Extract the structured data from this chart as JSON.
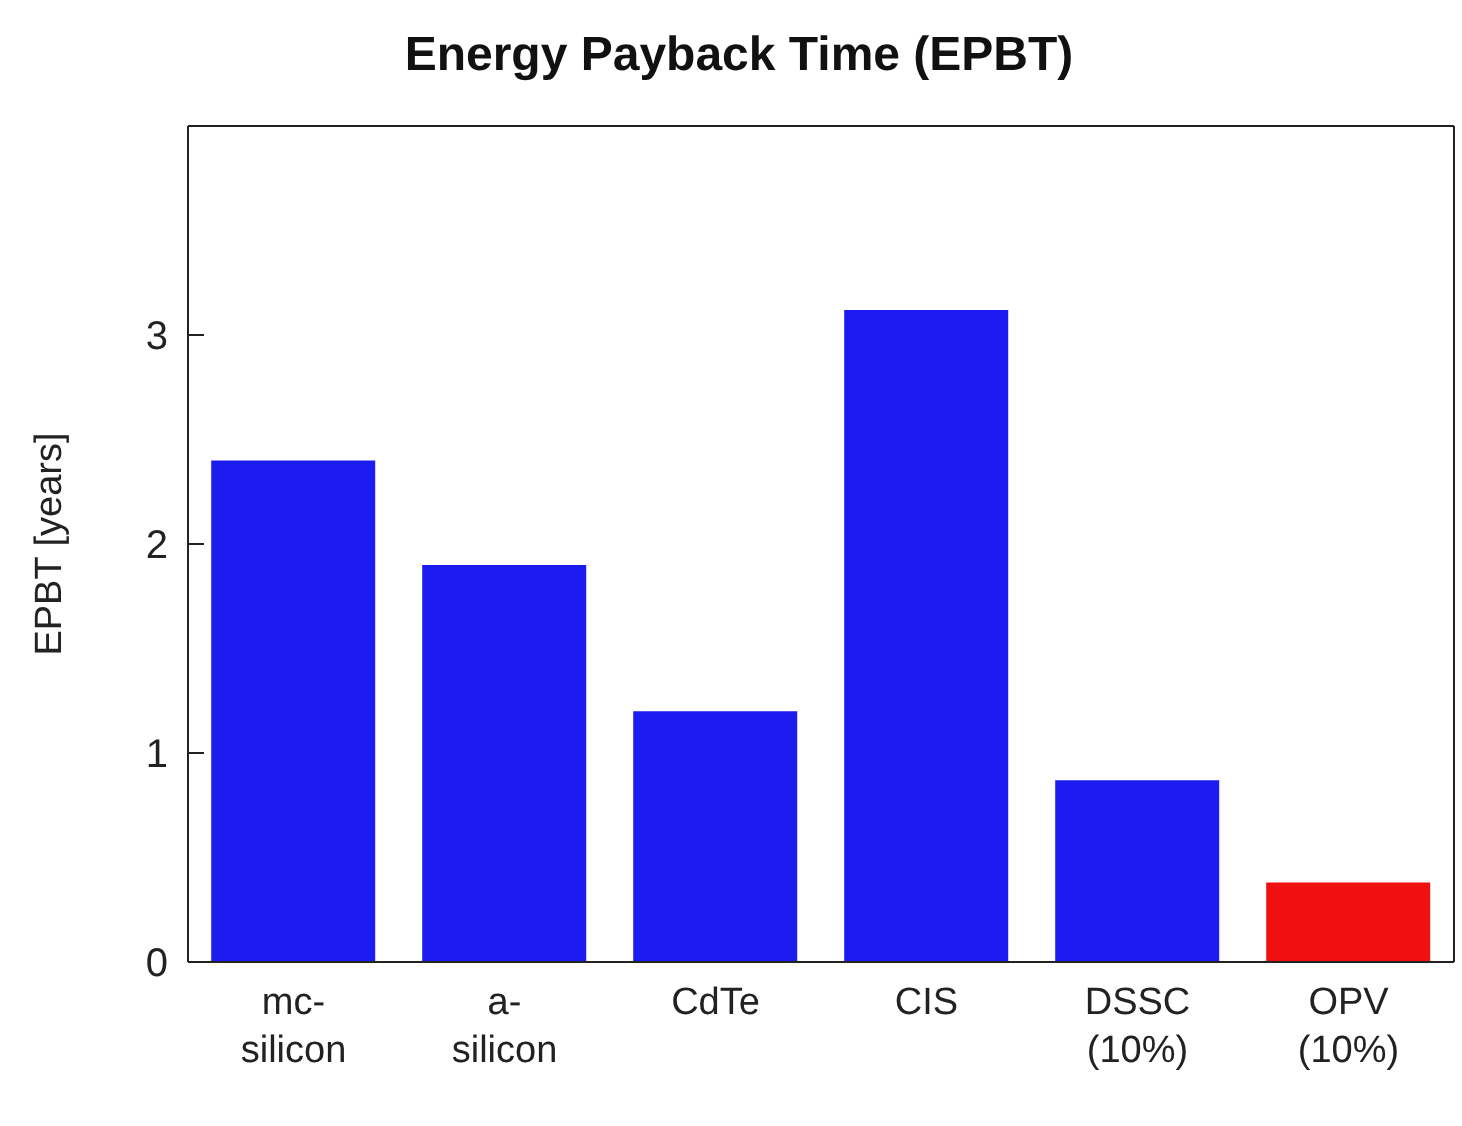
{
  "chart_data": {
    "type": "bar",
    "title": "Energy Payback Time (EPBT)",
    "ylabel": "EPBT [years]",
    "categories": [
      "mc-\nsilicon",
      "a-\nsilicon",
      "CdTe",
      "CIS",
      "DSSC\n(10%)",
      "OPV\n(10%)"
    ],
    "values": [
      2.4,
      1.9,
      1.2,
      3.12,
      0.87,
      0.38
    ],
    "colors": [
      "#1c1cf0",
      "#1c1cf0",
      "#1c1cf0",
      "#1c1cf0",
      "#1c1cf0",
      "#f01010"
    ],
    "ylim": [
      0,
      4
    ],
    "yticks": [
      0,
      1,
      2,
      3
    ],
    "grid": false,
    "legend": false
  }
}
